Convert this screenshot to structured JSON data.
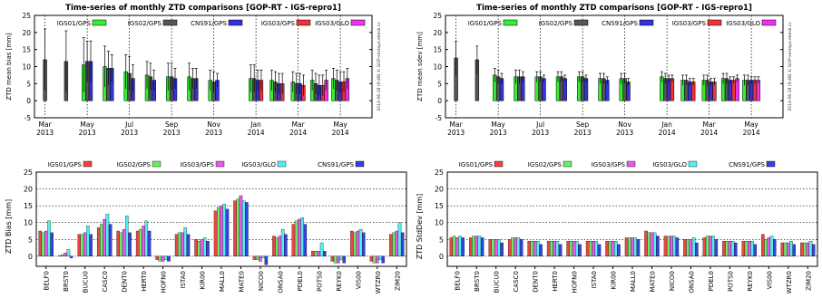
{
  "colors": {
    "igs01_gps": "#33ee33",
    "igs02_gps": "#555555",
    "cns91_gps": "#3333dd",
    "igs03_gps": "#ee3333",
    "igs03_glo": "#ee33ee",
    "bias_igs01": "#ee4444",
    "bias_igs02": "#66ee66",
    "bias_igs03_gps": "#ee55ee",
    "bias_igs03_glo": "#55eeee",
    "bias_cns91": "#3344dd",
    "edge": "#000000"
  },
  "chart_data": [
    {
      "type": "bar",
      "title": "Time-series of monthly ZTD comparisons [GOP-RT - IGS-repro1]",
      "ylabel": "ZTD mean bias [mm]",
      "side_text": "2014-06-18 (9:48) © GOP-sestaya.ebesk.cz",
      "ylim": [
        -5,
        25
      ],
      "yticks": [
        -5,
        0,
        5,
        10,
        15,
        20,
        25
      ],
      "xtick_labels": [
        {
          "month": "Mar",
          "year": "2013"
        },
        {
          "month": "May",
          "year": "2013"
        },
        {
          "month": "Jul",
          "year": "2013"
        },
        {
          "month": "Sep",
          "year": "2013"
        },
        {
          "month": "Nov",
          "year": "2013"
        },
        {
          "month": "Jan",
          "year": "2014"
        },
        {
          "month": "Mar",
          "year": "2014"
        },
        {
          "month": "May",
          "year": "2014"
        }
      ],
      "legend": [
        "IGS01/GPS",
        "IGS02/GPS",
        "CNS91/GPS",
        "IGS03/GPS",
        "IGS03/GLO"
      ],
      "months": [
        {
          "m": 0,
          "bars": [
            null,
            12,
            null,
            null,
            null
          ],
          "err": [
            null,
            9,
            null,
            null,
            null
          ]
        },
        {
          "m": 1,
          "bars": [
            null,
            11.5,
            null,
            null,
            null
          ],
          "err": [
            null,
            9,
            null,
            null,
            null
          ]
        },
        {
          "m": 2,
          "bars": [
            10.5,
            11.5,
            11.5,
            null,
            null
          ],
          "err": [
            8,
            6,
            6,
            null,
            null
          ]
        },
        {
          "m": 3,
          "bars": [
            10,
            9.5,
            9.5,
            null,
            null
          ],
          "err": [
            6,
            5,
            4,
            null,
            null
          ]
        },
        {
          "m": 4,
          "bars": [
            8.5,
            8,
            6.5,
            null,
            null
          ],
          "err": [
            5,
            5,
            4,
            null,
            null
          ]
        },
        {
          "m": 5,
          "bars": [
            7.5,
            7,
            6,
            null,
            null
          ],
          "err": [
            4,
            4,
            3,
            null,
            null
          ]
        },
        {
          "m": 6,
          "bars": [
            7,
            7,
            6.5,
            null,
            null
          ],
          "err": [
            4,
            4,
            3,
            null,
            null
          ]
        },
        {
          "m": 7,
          "bars": [
            7,
            6.5,
            6.5,
            null,
            null
          ],
          "err": [
            4,
            3,
            3,
            null,
            null
          ]
        },
        {
          "m": 8,
          "bars": [
            6,
            5.5,
            6,
            null,
            null
          ],
          "err": [
            3,
            3,
            2,
            null,
            null
          ]
        },
        {
          "m": 10,
          "bars": [
            6.5,
            6.5,
            6,
            6,
            null
          ],
          "err": [
            4,
            4,
            3,
            3,
            null
          ]
        },
        {
          "m": 11,
          "bars": [
            6,
            5.5,
            5,
            5,
            null
          ],
          "err": [
            3,
            3,
            3,
            3,
            null
          ]
        },
        {
          "m": 12,
          "bars": [
            5.5,
            5,
            5,
            4.5,
            null
          ],
          "err": [
            3,
            3,
            3,
            3,
            null
          ]
        },
        {
          "m": 13,
          "bars": [
            6,
            5,
            4.5,
            4.5,
            6
          ],
          "err": [
            3,
            3,
            3,
            3,
            3
          ]
        },
        {
          "m": 14,
          "bars": [
            6.5,
            6,
            5.5,
            5.5,
            6.5
          ],
          "err": [
            3,
            3,
            3,
            3,
            3
          ]
        }
      ]
    },
    {
      "type": "bar",
      "title": "Time-series of monthly ZTD comparisons [GOP-RT - IGS-repro1]",
      "ylabel": "ZTD mean sdev [mm]",
      "side_text": "2014-06-18 (9:48) © GOP-sestaya.ebesk.cz",
      "ylim": [
        -5,
        25
      ],
      "yticks": [
        -5,
        0,
        5,
        10,
        15,
        20,
        25
      ],
      "xtick_labels": [
        {
          "month": "Mar",
          "year": "2013"
        },
        {
          "month": "May",
          "year": "2013"
        },
        {
          "month": "Jul",
          "year": "2013"
        },
        {
          "month": "Sep",
          "year": "2013"
        },
        {
          "month": "Nov",
          "year": "2013"
        },
        {
          "month": "Jan",
          "year": "2014"
        },
        {
          "month": "Mar",
          "year": "2014"
        },
        {
          "month": "May",
          "year": "2014"
        }
      ],
      "legend": [
        "IGS01/GPS",
        "IGS02/GPS",
        "CNS91/GPS",
        "IGS03/GPS",
        "IGS03/GLO"
      ],
      "months": [
        {
          "m": 0,
          "bars": [
            null,
            12.5,
            null,
            null,
            null
          ],
          "err": [
            null,
            5,
            null,
            null,
            null
          ]
        },
        {
          "m": 1,
          "bars": [
            null,
            12,
            null,
            null,
            null
          ],
          "err": [
            null,
            4,
            null,
            null,
            null
          ]
        },
        {
          "m": 2,
          "bars": [
            7.5,
            7,
            6.5,
            null,
            null
          ],
          "err": [
            2,
            2,
            1.5,
            null,
            null
          ]
        },
        {
          "m": 3,
          "bars": [
            7,
            7,
            7,
            null,
            null
          ],
          "err": [
            2,
            2,
            1.5,
            null,
            null
          ]
        },
        {
          "m": 4,
          "bars": [
            7,
            7,
            6.5,
            null,
            null
          ],
          "err": [
            1.5,
            1.5,
            1,
            null,
            null
          ]
        },
        {
          "m": 5,
          "bars": [
            7,
            7,
            6.5,
            null,
            null
          ],
          "err": [
            1.5,
            1.5,
            1,
            null,
            null
          ]
        },
        {
          "m": 6,
          "bars": [
            7,
            7,
            6.5,
            null,
            null
          ],
          "err": [
            1.5,
            1.5,
            1,
            null,
            null
          ]
        },
        {
          "m": 7,
          "bars": [
            6.5,
            6.5,
            6,
            null,
            null
          ],
          "err": [
            1.5,
            1.5,
            1,
            null,
            null
          ]
        },
        {
          "m": 8,
          "bars": [
            6.5,
            6.5,
            5.5,
            null,
            null
          ],
          "err": [
            1.5,
            1.5,
            1,
            null,
            null
          ]
        },
        {
          "m": 10,
          "bars": [
            7,
            6.5,
            6.5,
            6.5,
            null
          ],
          "err": [
            1.5,
            1.5,
            1,
            1,
            null
          ]
        },
        {
          "m": 11,
          "bars": [
            6,
            6,
            5.5,
            5.5,
            null
          ],
          "err": [
            1.5,
            1.5,
            1,
            1,
            null
          ]
        },
        {
          "m": 12,
          "bars": [
            6,
            6,
            5.5,
            5.5,
            null
          ],
          "err": [
            1.5,
            1.5,
            1,
            1,
            null
          ]
        },
        {
          "m": 13,
          "bars": [
            6.5,
            6.5,
            6,
            6,
            6.5
          ],
          "err": [
            1.5,
            1.5,
            1,
            1,
            1
          ]
        },
        {
          "m": 14,
          "bars": [
            6,
            6,
            6,
            6,
            6
          ],
          "err": [
            1.5,
            1.5,
            1,
            1,
            1
          ]
        }
      ]
    },
    {
      "type": "bar",
      "title": "",
      "ylabel": "ZTD Bias [mm]",
      "ylim": [
        -3,
        25
      ],
      "yticks": [
        0,
        5,
        10,
        15,
        20,
        25
      ],
      "legend": [
        "IGS01/GPS",
        "IGS02/GPS",
        "IGS03/GPS",
        "IGS03/GLO",
        "CNS91/GPS"
      ],
      "categories": [
        "BELF0",
        "BRST0",
        "BUCU0",
        "CASC0",
        "DENT0",
        "HERT0",
        "HOFN0",
        "ISTA0",
        "KIR00",
        "MALL0",
        "MATE0",
        "NICO0",
        "ONSA0",
        "PDEL0",
        "POTS0",
        "REYK0",
        "VIS00",
        "WTZR0",
        "ZIM20"
      ],
      "series": [
        {
          "values": [
            7.5,
            0.2,
            6.5,
            8.5,
            7.5,
            7.5,
            -1,
            6.5,
            5,
            13.5,
            16.5,
            -1,
            6,
            9.5,
            1.5,
            -1.5,
            7.5,
            -1.5,
            6.5
          ]
        },
        {
          "values": [
            7,
            0.5,
            6.5,
            9.5,
            7,
            8,
            -1.5,
            7,
            4.5,
            14.5,
            17,
            -1,
            5.5,
            10.5,
            1.5,
            -2,
            7,
            -2,
            7
          ]
        },
        {
          "values": [
            7.5,
            1,
            7,
            11,
            8,
            9,
            -1.5,
            7,
            5,
            15,
            18,
            -1.5,
            6,
            11,
            1.5,
            -2,
            7.5,
            -2,
            7.5
          ]
        },
        {
          "values": [
            10.5,
            2,
            9,
            12.5,
            12,
            10.5,
            -1,
            8.5,
            5.5,
            15.5,
            16.5,
            -0.5,
            8,
            11.5,
            4,
            -1,
            8,
            -1,
            10
          ]
        },
        {
          "values": [
            7,
            -0.5,
            6.5,
            9.5,
            7,
            7.5,
            -1.5,
            6.5,
            4.5,
            14,
            16,
            -2.5,
            6.5,
            9.5,
            1.5,
            -2,
            7,
            -2,
            7
          ]
        }
      ]
    },
    {
      "type": "bar",
      "title": "",
      "ylabel": "ZTD StdDev [mm]",
      "ylim": [
        -3,
        25
      ],
      "yticks": [
        0,
        5,
        10,
        15,
        20,
        25
      ],
      "legend": [
        "IGS01/GPS",
        "IGS02/GPS",
        "IGS03/GPS",
        "IGS03/GLO",
        "CNS91/GPS"
      ],
      "categories": [
        "BELF0",
        "BRST0",
        "BUCU0",
        "CASC0",
        "DENT0",
        "HERT0",
        "HOFN0",
        "ISTA0",
        "KIR00",
        "MALL0",
        "MATE0",
        "NICO0",
        "ONSA0",
        "PDEL0",
        "POTS0",
        "REYK0",
        "VIS00",
        "WTZR0",
        "ZIM20"
      ],
      "series": [
        {
          "values": [
            5.5,
            5.5,
            5,
            5,
            4.5,
            4.5,
            4.5,
            4.5,
            4.5,
            5.5,
            7.5,
            6,
            5,
            5.5,
            4.5,
            4.5,
            6.5,
            4,
            4
          ]
        },
        {
          "values": [
            6,
            6,
            5,
            5.5,
            4.5,
            4.5,
            4.5,
            4.5,
            4.5,
            5.5,
            7,
            6,
            5,
            6,
            4.5,
            4.5,
            5,
            4,
            4
          ]
        },
        {
          "values": [
            5.5,
            6,
            5,
            5.5,
            4.5,
            4.5,
            4.5,
            4.5,
            4.5,
            5.5,
            7,
            6,
            5,
            6,
            4.5,
            4.5,
            5.5,
            4,
            4
          ]
        },
        {
          "values": [
            6,
            6,
            5,
            5.5,
            4.5,
            4.5,
            4.5,
            4.5,
            4.5,
            5.5,
            7,
            6,
            5.5,
            6,
            4.5,
            4.5,
            6,
            4.5,
            4.5
          ]
        },
        {
          "values": [
            5.5,
            5.5,
            4,
            5,
            3.5,
            3.5,
            3.5,
            3.5,
            3.5,
            5,
            6,
            5.5,
            4,
            5,
            4,
            3.5,
            5,
            3.5,
            3.5
          ]
        }
      ]
    }
  ]
}
